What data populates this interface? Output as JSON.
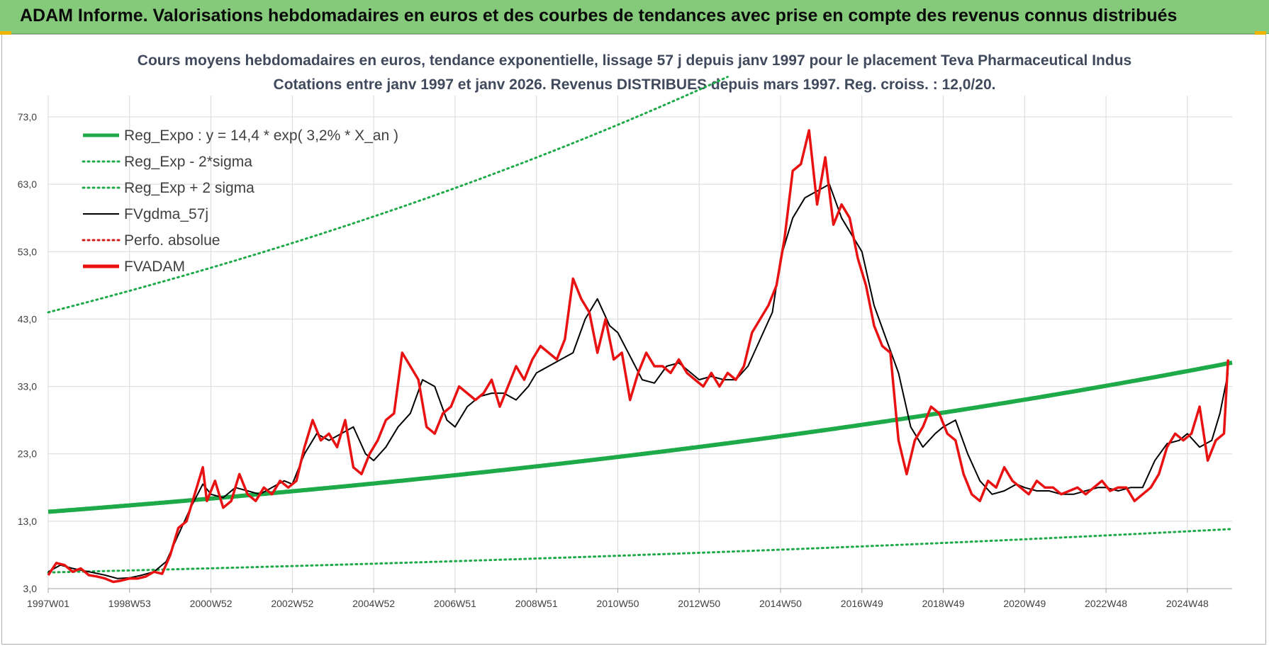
{
  "header": {
    "title": "ADAM Informe. Valorisations hebdomadaires en euros et des courbes de tendances avec prise en compte des revenus connus distribués"
  },
  "chart_data": {
    "type": "line",
    "title": "Cours moyens hebdomadaires en euros, tendance exponentielle, lissage 57 j depuis janv 1997 pour le placement Teva Pharmaceutical Indus",
    "subtitle": "Cotations entre janv 1997 et janv 2026. Revenus DISTRIBUES depuis mars 1997. Reg. croiss. : 12,0/20.",
    "xlabel": "",
    "ylabel": "",
    "ylim": [
      3,
      73
    ],
    "xlim": [
      1997.0,
      2026.1
    ],
    "y_ticks": [
      "3,0",
      "13,0",
      "23,0",
      "33,0",
      "43,0",
      "53,0",
      "63,0",
      "73,0"
    ],
    "x_ticks": [
      {
        "label": "1997W01",
        "x": 1997.0
      },
      {
        "label": "1998W53",
        "x": 1999.0
      },
      {
        "label": "2000W52",
        "x": 2001.0
      },
      {
        "label": "2002W52",
        "x": 2003.0
      },
      {
        "label": "2004W52",
        "x": 2005.0
      },
      {
        "label": "2006W51",
        "x": 2007.0
      },
      {
        "label": "2008W51",
        "x": 2009.0
      },
      {
        "label": "2010W50",
        "x": 2011.0
      },
      {
        "label": "2012W50",
        "x": 2013.0
      },
      {
        "label": "2014W50",
        "x": 2015.0
      },
      {
        "label": "2016W49",
        "x": 2017.0
      },
      {
        "label": "2018W49",
        "x": 2019.0
      },
      {
        "label": "2020W49",
        "x": 2021.0
      },
      {
        "label": "2022W48",
        "x": 2023.0
      },
      {
        "label": "2024W48",
        "x": 2025.0
      }
    ],
    "grid": true,
    "legend_position": "top-left",
    "series": [
      {
        "name": "Reg_Expo : y = 14,4 * exp( 3,2% *  X_an )",
        "color": "#1faa4a",
        "style": "solid-thick",
        "formula": {
          "a": 14.4,
          "rate": 0.032,
          "x0": 1997.0
        }
      },
      {
        "name": "Reg_Exp - 2*sigma",
        "color": "#1faa4a",
        "style": "dotted",
        "formula": {
          "a": 5.4,
          "rate": 0.027,
          "x0": 1997.0
        }
      },
      {
        "name": "Reg_Exp + 2 sigma",
        "color": "#1faa4a",
        "style": "dotted",
        "formula": {
          "a": 44.0,
          "rate": 0.035,
          "x0": 1997.0
        }
      },
      {
        "name": "FVgdma_57j",
        "color": "#000000",
        "style": "solid",
        "x": [
          1997.0,
          1997.3,
          1997.6,
          1998.0,
          1998.4,
          1998.7,
          1999.0,
          1999.3,
          1999.6,
          1999.9,
          2000.2,
          2000.5,
          2000.8,
          2001.0,
          2001.3,
          2001.6,
          2001.9,
          2002.2,
          2002.5,
          2002.8,
          2003.0,
          2003.3,
          2003.6,
          2003.9,
          2004.2,
          2004.5,
          2004.8,
          2005.0,
          2005.3,
          2005.6,
          2005.9,
          2006.2,
          2006.5,
          2006.8,
          2007.0,
          2007.3,
          2007.6,
          2007.9,
          2008.2,
          2008.5,
          2008.8,
          2009.0,
          2009.3,
          2009.6,
          2009.9,
          2010.2,
          2010.5,
          2010.8,
          2011.0,
          2011.3,
          2011.6,
          2011.9,
          2012.2,
          2012.5,
          2012.8,
          2013.0,
          2013.3,
          2013.6,
          2013.9,
          2014.2,
          2014.5,
          2014.8,
          2015.0,
          2015.3,
          2015.6,
          2015.9,
          2016.2,
          2016.5,
          2016.8,
          2017.0,
          2017.3,
          2017.6,
          2017.9,
          2018.2,
          2018.5,
          2018.8,
          2019.0,
          2019.3,
          2019.6,
          2019.9,
          2020.2,
          2020.5,
          2020.8,
          2021.0,
          2021.3,
          2021.6,
          2021.9,
          2022.2,
          2022.5,
          2022.8,
          2023.0,
          2023.3,
          2023.6,
          2023.9,
          2024.2,
          2024.5,
          2024.8,
          2025.0,
          2025.3,
          2025.6,
          2025.8,
          2026.0
        ],
        "values": [
          5.5,
          6.5,
          6.0,
          5.5,
          5.0,
          4.5,
          4.6,
          5.0,
          5.5,
          7.0,
          11.0,
          15.0,
          18.5,
          17.0,
          16.5,
          18.0,
          17.5,
          17.0,
          18.0,
          19.0,
          18.5,
          23.0,
          26.0,
          25.0,
          26.0,
          27.0,
          23.0,
          22.0,
          24.0,
          27.0,
          29.0,
          34.0,
          33.0,
          28.0,
          27.0,
          30.0,
          31.5,
          32.0,
          32.0,
          31.0,
          33.0,
          35.0,
          36.0,
          37.0,
          38.0,
          43.0,
          46.0,
          42.0,
          41.0,
          37.5,
          34.0,
          33.5,
          36.0,
          36.5,
          35.0,
          34.0,
          34.5,
          34.0,
          34.0,
          36.0,
          40.0,
          44.0,
          52.0,
          58.0,
          61.0,
          62.0,
          63.0,
          58.0,
          55.0,
          53.0,
          45.0,
          40.0,
          35.0,
          27.0,
          24.0,
          26.0,
          27.0,
          28.0,
          23.0,
          19.0,
          17.0,
          17.5,
          18.5,
          18.0,
          17.5,
          17.5,
          17.0,
          17.0,
          17.5,
          18.0,
          18.0,
          17.5,
          18.0,
          18.0,
          22.0,
          24.5,
          25.0,
          26.0,
          24.0,
          25.0,
          29.0,
          35.0
        ]
      },
      {
        "name": "Perfo. absolue",
        "color": "#d11a1a",
        "style": "dotted",
        "x": [],
        "values": []
      },
      {
        "name": "FVADAM",
        "color": "#e81212",
        "style": "solid-thick",
        "x": [
          1997.0,
          1997.2,
          1997.4,
          1997.6,
          1997.8,
          1998.0,
          1998.2,
          1998.4,
          1998.6,
          1998.8,
          1999.0,
          1999.2,
          1999.4,
          1999.6,
          1999.8,
          2000.0,
          2000.2,
          2000.4,
          2000.6,
          2000.8,
          2000.9,
          2001.1,
          2001.3,
          2001.5,
          2001.7,
          2001.9,
          2002.1,
          2002.3,
          2002.5,
          2002.7,
          2002.9,
          2003.1,
          2003.3,
          2003.5,
          2003.7,
          2003.9,
          2004.1,
          2004.3,
          2004.5,
          2004.7,
          2004.9,
          2005.1,
          2005.3,
          2005.5,
          2005.7,
          2005.9,
          2006.1,
          2006.3,
          2006.5,
          2006.7,
          2006.9,
          2007.1,
          2007.3,
          2007.5,
          2007.7,
          2007.9,
          2008.1,
          2008.3,
          2008.5,
          2008.7,
          2008.9,
          2009.1,
          2009.3,
          2009.5,
          2009.7,
          2009.9,
          2010.1,
          2010.3,
          2010.5,
          2010.7,
          2010.9,
          2011.1,
          2011.3,
          2011.5,
          2011.7,
          2011.9,
          2012.1,
          2012.3,
          2012.5,
          2012.7,
          2012.9,
          2013.1,
          2013.3,
          2013.5,
          2013.7,
          2013.9,
          2014.1,
          2014.3,
          2014.5,
          2014.7,
          2014.9,
          2015.1,
          2015.3,
          2015.5,
          2015.7,
          2015.9,
          2016.1,
          2016.3,
          2016.5,
          2016.7,
          2016.9,
          2017.1,
          2017.3,
          2017.5,
          2017.7,
          2017.9,
          2018.1,
          2018.3,
          2018.5,
          2018.7,
          2018.9,
          2019.1,
          2019.3,
          2019.5,
          2019.7,
          2019.9,
          2020.1,
          2020.3,
          2020.5,
          2020.7,
          2020.9,
          2021.1,
          2021.3,
          2021.5,
          2021.7,
          2021.9,
          2022.1,
          2022.3,
          2022.5,
          2022.7,
          2022.9,
          2023.1,
          2023.3,
          2023.5,
          2023.7,
          2023.9,
          2024.1,
          2024.3,
          2024.5,
          2024.7,
          2024.9,
          2025.1,
          2025.3,
          2025.5,
          2025.7,
          2025.9,
          2026.0
        ],
        "values": [
          5.0,
          6.8,
          6.5,
          5.5,
          6.0,
          5.0,
          4.8,
          4.5,
          4.0,
          4.2,
          4.5,
          4.5,
          4.8,
          5.5,
          5.2,
          8.0,
          12.0,
          13.0,
          17.0,
          21.0,
          16.0,
          19.0,
          15.0,
          16.0,
          20.0,
          17.0,
          16.0,
          18.0,
          17.0,
          19.0,
          18.0,
          19.0,
          24.0,
          28.0,
          25.0,
          26.0,
          24.0,
          28.0,
          21.0,
          20.0,
          23.0,
          25.0,
          28.0,
          29.0,
          38.0,
          36.0,
          34.0,
          27.0,
          26.0,
          29.0,
          30.0,
          33.0,
          32.0,
          31.0,
          32.0,
          34.0,
          30.0,
          33.0,
          36.0,
          34.0,
          37.0,
          39.0,
          38.0,
          37.0,
          40.0,
          49.0,
          46.0,
          44.0,
          38.0,
          43.0,
          37.0,
          38.0,
          31.0,
          35.0,
          38.0,
          36.0,
          36.0,
          35.0,
          37.0,
          35.0,
          34.0,
          33.0,
          35.0,
          33.0,
          35.0,
          34.0,
          36.0,
          41.0,
          43.0,
          45.0,
          48.0,
          55.0,
          65.0,
          66.0,
          71.0,
          60.0,
          67.0,
          57.0,
          60.0,
          58.0,
          52.0,
          48.0,
          42.0,
          39.0,
          38.0,
          25.0,
          20.0,
          25.0,
          27.0,
          30.0,
          29.0,
          26.0,
          25.0,
          20.0,
          17.0,
          16.0,
          19.0,
          18.0,
          21.0,
          19.0,
          18.0,
          17.0,
          19.0,
          18.0,
          18.0,
          17.0,
          17.5,
          18.0,
          17.0,
          18.0,
          19.0,
          17.5,
          18.0,
          18.0,
          16.0,
          17.0,
          18.0,
          20.0,
          24.0,
          26.0,
          25.0,
          26.0,
          30.0,
          22.0,
          25.0,
          26.0,
          37.0
        ]
      }
    ]
  }
}
